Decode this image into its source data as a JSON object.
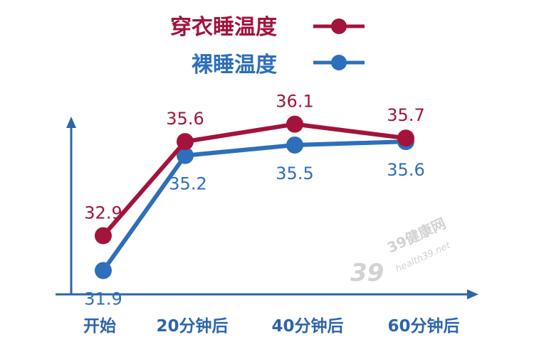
{
  "chart_data": {
    "type": "line",
    "categories": [
      "开始",
      "20分钟后",
      "40分钟后",
      "60分钟后"
    ],
    "series": [
      {
        "name": "穿衣睡温度",
        "values": [
          32.9,
          35.6,
          36.1,
          35.7
        ],
        "labels": [
          "32.9",
          "35.6",
          "36.1",
          "35.7"
        ],
        "color": "#a3133b",
        "label_placement": "above"
      },
      {
        "name": "裸睡温度",
        "values": [
          31.9,
          35.2,
          35.5,
          35.6
        ],
        "labels": [
          "31.9",
          "35.2",
          "35.5",
          "35.6"
        ],
        "color": "#2d6fba",
        "label_placement": "below"
      }
    ],
    "ylim": [
      31.4,
      36.5
    ],
    "grid": false,
    "legend": "top-center",
    "axis_color": "#2d64ad"
  },
  "watermark": {
    "logo": "39",
    "brand": "39健康网",
    "url": "health39.net"
  }
}
